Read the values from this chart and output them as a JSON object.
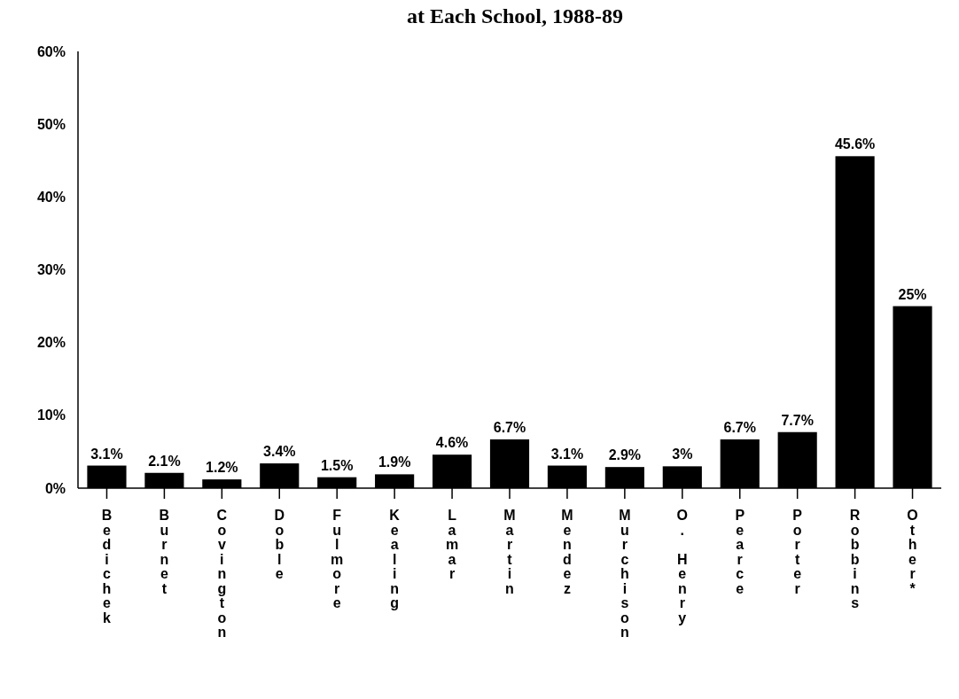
{
  "chart_data": {
    "type": "bar",
    "title": "at Each School, 1988-89",
    "categories": [
      "Bedichek",
      "Burnet",
      "Covington",
      "Doble",
      "Fulmore",
      "Kealing",
      "Lamar",
      "Martin",
      "Mendez",
      "Murchison",
      "O. Henry",
      "Pearce",
      "Porter",
      "Robbins",
      "Other*"
    ],
    "values": [
      3.1,
      2.1,
      1.2,
      3.4,
      1.5,
      1.9,
      4.6,
      6.7,
      3.1,
      2.9,
      3,
      6.7,
      7.7,
      45.6,
      25
    ],
    "value_labels": [
      "3.1%",
      "2.1%",
      "1.2%",
      "3.4%",
      "1.5%",
      "1.9%",
      "4.6%",
      "6.7%",
      "3.1%",
      "2.9%",
      "3%",
      "6.7%",
      "7.7%",
      "45.6%",
      "25%"
    ],
    "color": "#000000",
    "ylim": [
      0,
      60
    ],
    "yticks": [
      {
        "value": 0,
        "label": "0%"
      },
      {
        "value": 10,
        "label": "10%"
      },
      {
        "value": 20,
        "label": "20%"
      },
      {
        "value": 30,
        "label": "30%"
      },
      {
        "value": 40,
        "label": "40%"
      },
      {
        "value": 50,
        "label": "50%"
      },
      {
        "value": 60,
        "label": "60%"
      }
    ],
    "grid": false
  }
}
